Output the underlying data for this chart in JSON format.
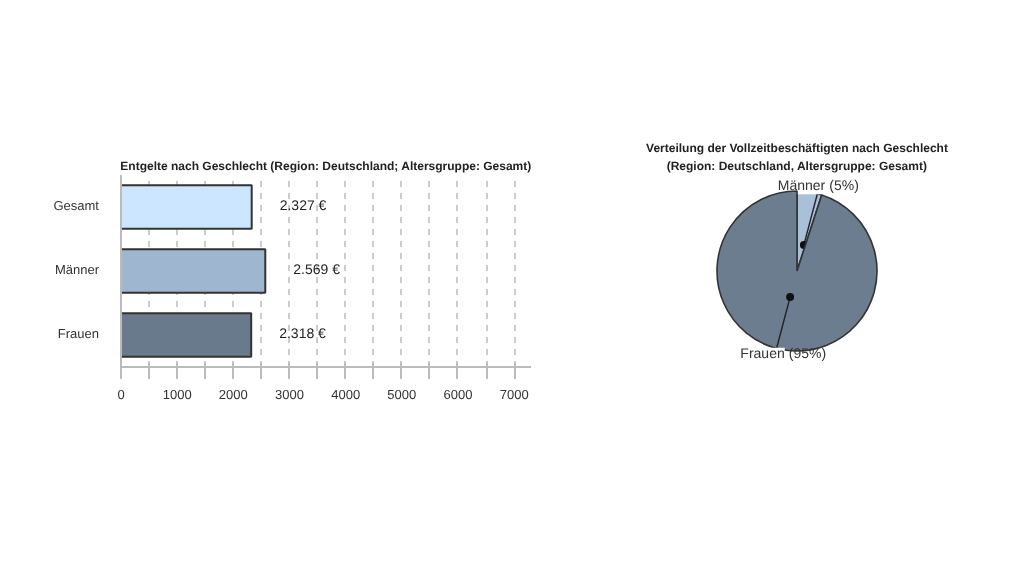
{
  "chart_data": [
    {
      "type": "bar",
      "orientation": "horizontal",
      "title": "Entgelte nach Geschlecht (Region: Deutschland; Altersgruppe: Gesamt)",
      "categories": [
        "Gesamt",
        "Männer",
        "Frauen"
      ],
      "values": [
        2327,
        2569,
        2318
      ],
      "colors": [
        "#cce6ff",
        "#9fb6cf",
        "#687a8c"
      ],
      "value_labels": [
        "2.327 €",
        "2.569 €",
        "2.318 €"
      ],
      "xlim": [
        0,
        7300
      ],
      "xticks": [
        0,
        {
          "value": 500,
          "label": null
        },
        1000,
        {
          "value": 1500,
          "label": null
        },
        2000,
        {
          "value": 2500,
          "label": null
        },
        3000,
        {
          "value": 3500,
          "label": null
        },
        4000,
        {
          "value": 4500,
          "label": null
        },
        5000,
        {
          "value": 5500,
          "label": null
        },
        6000,
        {
          "value": 6500,
          "label": null
        },
        7000
      ],
      "grid": "x"
    },
    {
      "type": "pie",
      "title": "Verteilung der Vollzeitbeschäftigten nach Geschlecht",
      "subtitle": "(Region: Deutschland, Altersgruppe: Gesamt)",
      "categories": [
        "Männer",
        "Frauen"
      ],
      "values": [
        5,
        95
      ],
      "colors": [
        "#a8c0da",
        "#6b7d8f"
      ],
      "value_labels": [
        "(5%)",
        "(95%)"
      ]
    }
  ]
}
